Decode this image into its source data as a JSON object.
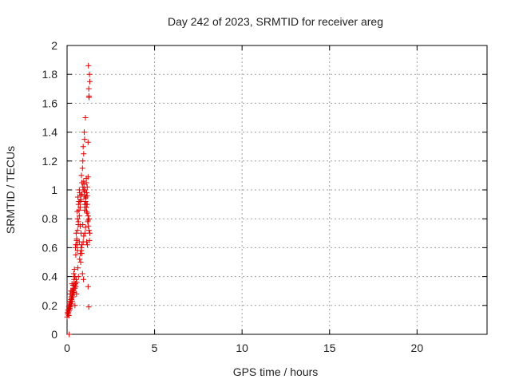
{
  "chart_data": {
    "type": "scatter",
    "title": "Day 242 of 2023, SRMTID for receiver areg",
    "xlabel": "GPS time / hours",
    "ylabel": "SRMTID / TECUs",
    "xlim": [
      0,
      24
    ],
    "ylim": [
      0,
      2
    ],
    "xticks": [
      0,
      5,
      10,
      15,
      20
    ],
    "yticks": [
      0,
      0.2,
      0.4,
      0.6,
      0.8,
      1,
      1.2,
      1.4,
      1.6,
      1.8,
      2
    ],
    "xtick_labels": [
      "0",
      "5",
      "10",
      "15",
      "20"
    ],
    "ytick_labels": [
      "0",
      "0.2",
      "0.4",
      "0.6",
      "0.8",
      "1",
      "1.2",
      "1.4",
      "1.6",
      "1.8",
      "2"
    ],
    "grid": true,
    "marker": "plus",
    "color": "#e00000",
    "series": [
      {
        "x": [
          0.0,
          0.05,
          0.1,
          0.15,
          0.08,
          0.12,
          0.2,
          0.25,
          0.18,
          0.22,
          0.3,
          0.35,
          0.28,
          0.33,
          0.4,
          0.38,
          0.45,
          0.42,
          0.5,
          0.48,
          0.55,
          0.52,
          0.6,
          0.58,
          0.65,
          0.62,
          0.7,
          0.68,
          0.75,
          0.72,
          0.8,
          0.78,
          0.85,
          0.82,
          0.9,
          0.88,
          0.95,
          0.92,
          1.0,
          0.98,
          1.05,
          1.02,
          1.1,
          1.08,
          1.15,
          1.12,
          1.2,
          1.18,
          1.25,
          1.22,
          1.3,
          1.28,
          1.26,
          1.24,
          1.3,
          1.28,
          0.1,
          0.15,
          0.2,
          0.25,
          0.3,
          0.35,
          0.4,
          0.45,
          0.5,
          0.55,
          0.6,
          0.65,
          0.7,
          0.75,
          0.8,
          0.85,
          0.9,
          0.95,
          1.0,
          1.05,
          1.1,
          1.15,
          1.2,
          1.25,
          0.2,
          0.3,
          0.4,
          0.5,
          0.6,
          0.7,
          0.8,
          0.9,
          1.0,
          1.1,
          1.2,
          0.25,
          0.35,
          0.45,
          0.55,
          0.65,
          0.75,
          0.85,
          0.95,
          1.05,
          1.15,
          0.22,
          0.32,
          0.42,
          0.52,
          0.62,
          0.72,
          0.82,
          0.92,
          1.02,
          1.12,
          0.95,
          0.97,
          1.0,
          1.05,
          1.08,
          1.12,
          1.15,
          1.2,
          1.22,
          1.25,
          0.05,
          0.08,
          0.12,
          0.18,
          0.02,
          0.06,
          0.1,
          0.14,
          0.16,
          0.24,
          0.28,
          0.34,
          0.38,
          0.44,
          0.48,
          0.54,
          0.58,
          0.64,
          0.68,
          0.74,
          0.78,
          0.84,
          0.88,
          0.94,
          1.0,
          1.06,
          1.1,
          1.16,
          1.2,
          1.24,
          0.12
        ],
        "y": [
          0.12,
          0.14,
          0.16,
          0.18,
          0.15,
          0.2,
          0.22,
          0.25,
          0.28,
          0.3,
          0.26,
          0.32,
          0.35,
          0.3,
          0.38,
          0.42,
          0.2,
          0.45,
          0.55,
          0.6,
          0.65,
          0.7,
          0.8,
          0.85,
          0.9,
          0.95,
          1.0,
          0.92,
          0.75,
          0.98,
          0.6,
          0.5,
          1.05,
          1.1,
          1.2,
          1.15,
          1.25,
          1.3,
          1.35,
          1.4,
          1.5,
          1.0,
          1.08,
          0.95,
          0.9,
          0.85,
          0.82,
          0.78,
          0.8,
          0.75,
          0.7,
          0.65,
          1.64,
          1.7,
          1.75,
          1.8,
          0.13,
          0.17,
          0.21,
          0.24,
          0.27,
          0.31,
          0.35,
          0.4,
          0.62,
          0.66,
          0.72,
          0.78,
          0.82,
          0.88,
          0.93,
          0.97,
          1.02,
          1.06,
          0.99,
          0.94,
          0.88,
          0.84,
          0.79,
          0.72,
          0.19,
          0.23,
          0.29,
          0.33,
          0.58,
          0.64,
          0.7,
          0.76,
          0.86,
          0.9,
          1.09,
          0.21,
          0.26,
          0.32,
          0.36,
          0.4,
          0.56,
          0.62,
          0.68,
          0.74,
          0.96,
          0.24,
          0.28,
          0.34,
          0.38,
          0.46,
          0.52,
          0.58,
          0.64,
          0.7,
          0.64,
          1.0,
          1.04,
          0.96,
          0.92,
          0.88,
          0.98,
          1.02,
          1.33,
          1.86,
          1.65,
          0.14,
          0.16,
          0.18,
          0.2,
          0.15,
          0.17,
          0.19,
          0.21,
          0.23,
          0.26,
          0.3,
          0.34,
          0.3,
          0.4,
          0.35,
          0.28,
          0.62,
          0.76,
          0.86,
          0.92,
          0.96,
          0.56,
          0.42,
          0.38,
          0.9,
          0.95,
          1.05,
          0.62,
          0.33,
          0.19,
          0.0
        ]
      }
    ]
  }
}
